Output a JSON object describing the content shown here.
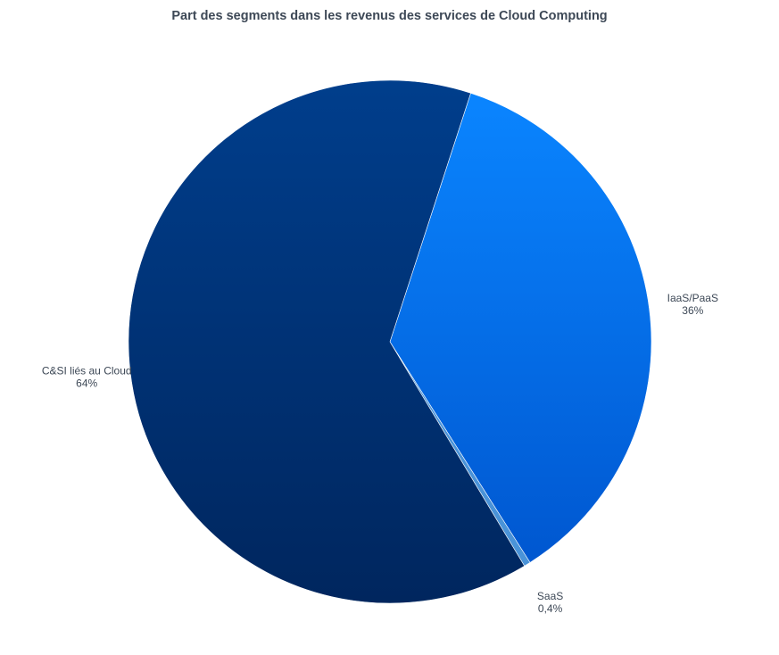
{
  "chart_data": {
    "type": "pie",
    "title": "Part des segments dans les revenus des services de Cloud Computing",
    "slices": [
      {
        "name": "IaaS/PaaS",
        "percent_label": "36%",
        "value": 36.0,
        "color_top": "#0a85ff",
        "color_bottom": "#0057d0"
      },
      {
        "name": "SaaS",
        "percent_label": "0,4%",
        "value": 0.4,
        "color_top": "#4a93d8",
        "color_bottom": "#4a93d8"
      },
      {
        "name": "C&SI liés au Cloud",
        "percent_label": "64%",
        "value": 63.6,
        "color_top": "#003e8c",
        "color_bottom": "#00265e"
      }
    ],
    "start_angle_deg": 18,
    "direction": "clockwise",
    "legend": "none",
    "labels": "outside"
  }
}
